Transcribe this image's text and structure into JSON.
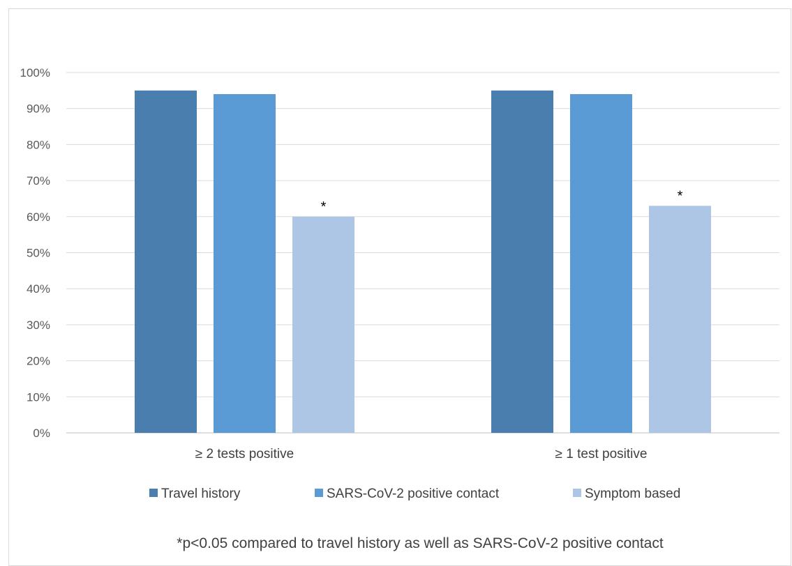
{
  "chart_data": {
    "type": "bar",
    "categories": [
      "≥ 2 tests positive",
      "≥ 1 test positive"
    ],
    "series": [
      {
        "name": "Travel history",
        "values": [
          95,
          95
        ],
        "color": "#4a7eaf"
      },
      {
        "name": "SARS-CoV-2 positive contact",
        "values": [
          94,
          94
        ],
        "color": "#5b9bd5"
      },
      {
        "name": "Symptom based",
        "values": [
          60,
          63
        ],
        "color": "#adc6e5"
      }
    ],
    "ylim": [
      0,
      100
    ],
    "yticks": [
      "0%",
      "10%",
      "20%",
      "30%",
      "40%",
      "50%",
      "60%",
      "70%",
      "80%",
      "90%",
      "100%"
    ],
    "ytick_values": [
      0,
      10,
      20,
      30,
      40,
      50,
      60,
      70,
      80,
      90,
      100
    ],
    "grid": true,
    "legend_position": "bottom",
    "annotations": [
      {
        "category_index": 0,
        "series_index": 2,
        "text": "*"
      },
      {
        "category_index": 1,
        "series_index": 2,
        "text": "*"
      }
    ],
    "footnote": "*p<0.05 compared to travel history as well as SARS-CoV-2 positive contact"
  }
}
